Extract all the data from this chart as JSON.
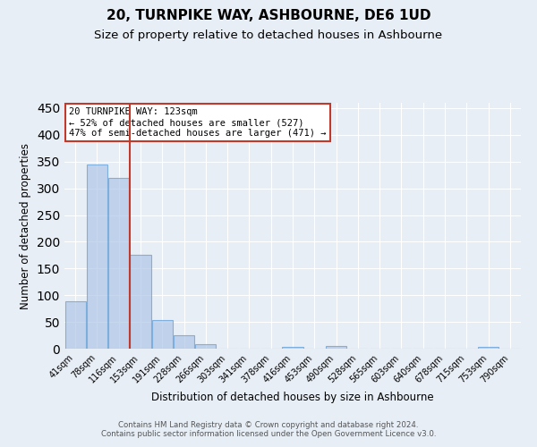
{
  "title": "20, TURNPIKE WAY, ASHBOURNE, DE6 1UD",
  "subtitle": "Size of property relative to detached houses in Ashbourne",
  "xlabel": "Distribution of detached houses by size in Ashbourne",
  "ylabel": "Number of detached properties",
  "footer_line1": "Contains HM Land Registry data © Crown copyright and database right 2024.",
  "footer_line2": "Contains public sector information licensed under the Open Government Licence v3.0.",
  "categories": [
    "41sqm",
    "78sqm",
    "116sqm",
    "153sqm",
    "191sqm",
    "228sqm",
    "266sqm",
    "303sqm",
    "341sqm",
    "378sqm",
    "416sqm",
    "453sqm",
    "490sqm",
    "528sqm",
    "565sqm",
    "603sqm",
    "640sqm",
    "678sqm",
    "715sqm",
    "753sqm",
    "790sqm"
  ],
  "values": [
    88,
    345,
    320,
    175,
    53,
    25,
    8,
    0,
    0,
    0,
    4,
    0,
    5,
    0,
    0,
    0,
    0,
    0,
    0,
    4,
    0
  ],
  "bar_color": "#aec6e8",
  "bar_edgecolor": "#5b9bd5",
  "bar_alpha": 0.7,
  "vline_x": 2.5,
  "vline_color": "#c0392b",
  "annotation_text": "20 TURNPIKE WAY: 123sqm\n← 52% of detached houses are smaller (527)\n47% of semi-detached houses are larger (471) →",
  "annotation_box_edgecolor": "#c0392b",
  "annotation_box_facecolor": "white",
  "ylim": [
    0,
    460
  ],
  "yticks": [
    0,
    50,
    100,
    150,
    200,
    250,
    300,
    350,
    400,
    450
  ],
  "background_color": "#e8eef5",
  "grid_color": "white",
  "title_fontsize": 11,
  "subtitle_fontsize": 9.5
}
